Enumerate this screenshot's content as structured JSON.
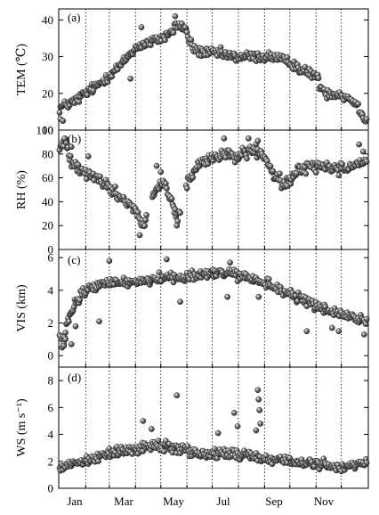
{
  "figure": {
    "x_ticks": [
      "Jan",
      "Mar",
      "May",
      "Jul",
      "Sep",
      "Nov"
    ],
    "month_day_starts": [
      1,
      32,
      60,
      91,
      121,
      152,
      182,
      213,
      244,
      274,
      305,
      335,
      366
    ]
  },
  "colors": {
    "marker_fill": "#3a3a3a",
    "marker_highlight": "#f2f2f2",
    "axis": "#000000"
  },
  "chart_data": [
    {
      "type": "scatter",
      "panel_label": "(a)",
      "ylabel": "TEM (℃)",
      "ylim": [
        10,
        43
      ],
      "yticks": [
        10,
        20,
        30,
        40
      ],
      "xlim": [
        0,
        367
      ],
      "vgrid": "dotted at month boundaries",
      "x_unit": "day of year",
      "anchors": [
        [
          1,
          16
        ],
        [
          10,
          17
        ],
        [
          20,
          18
        ],
        [
          31,
          20
        ],
        [
          45,
          22
        ],
        [
          60,
          25
        ],
        [
          75,
          28
        ],
        [
          85,
          31
        ],
        [
          95,
          33
        ],
        [
          110,
          34
        ],
        [
          122,
          35
        ],
        [
          135,
          37
        ],
        [
          140,
          39
        ],
        [
          150,
          37
        ],
        [
          160,
          32
        ],
        [
          175,
          31
        ],
        [
          190,
          31
        ],
        [
          205,
          30
        ],
        [
          220,
          30
        ],
        [
          235,
          30
        ],
        [
          245,
          30
        ],
        [
          255,
          30
        ],
        [
          265,
          29
        ],
        [
          278,
          28
        ],
        [
          290,
          26
        ],
        [
          305,
          25
        ],
        [
          310,
          22
        ],
        [
          318,
          20
        ],
        [
          330,
          20
        ],
        [
          340,
          19
        ],
        [
          350,
          18
        ],
        [
          358,
          15
        ],
        [
          364,
          13
        ]
      ],
      "noise": 2.0,
      "spikes": [
        [
          2,
          13
        ],
        [
          5,
          12.5
        ],
        [
          85,
          24
        ],
        [
          98,
          38
        ],
        [
          138,
          41
        ],
        [
          146,
          39
        ],
        [
          150,
          38
        ]
      ],
      "skip_ranges": []
    },
    {
      "type": "scatter",
      "panel_label": "(b)",
      "ylabel": "RH (%)",
      "ylim": [
        0,
        100
      ],
      "yticks": [
        0,
        20,
        40,
        60,
        80,
        100
      ],
      "xlim": [
        0,
        367
      ],
      "vgrid": "dotted at month boundaries",
      "x_unit": "day of year",
      "anchors": [
        [
          1,
          85
        ],
        [
          8,
          90
        ],
        [
          15,
          75
        ],
        [
          25,
          68
        ],
        [
          40,
          62
        ],
        [
          55,
          55
        ],
        [
          65,
          48
        ],
        [
          75,
          43
        ],
        [
          85,
          38
        ],
        [
          92,
          32
        ],
        [
          98,
          20
        ],
        [
          102,
          22
        ],
        [
          106,
          38
        ],
        [
          115,
          50
        ],
        [
          125,
          55
        ],
        [
          130,
          45
        ],
        [
          136,
          35
        ],
        [
          141,
          25
        ],
        [
          150,
          52
        ],
        [
          160,
          65
        ],
        [
          168,
          72
        ],
        [
          180,
          75
        ],
        [
          195,
          80
        ],
        [
          210,
          78
        ],
        [
          225,
          82
        ],
        [
          235,
          82
        ],
        [
          243,
          78
        ],
        [
          255,
          62
        ],
        [
          265,
          55
        ],
        [
          275,
          58
        ],
        [
          285,
          67
        ],
        [
          295,
          70
        ],
        [
          310,
          70
        ],
        [
          325,
          68
        ],
        [
          340,
          68
        ],
        [
          355,
          72
        ],
        [
          364,
          75
        ]
      ],
      "noise": 7.0,
      "spikes": [
        [
          7,
          93
        ],
        [
          15,
          86
        ],
        [
          35,
          78
        ],
        [
          42,
          58
        ],
        [
          96,
          12
        ],
        [
          116,
          70
        ],
        [
          121,
          65
        ],
        [
          140,
          20
        ],
        [
          196,
          93
        ],
        [
          225,
          93
        ],
        [
          236,
          91
        ],
        [
          356,
          88
        ],
        [
          361,
          82
        ]
      ],
      "skip_ranges": [
        [
          105,
          110
        ],
        [
          145,
          150
        ]
      ]
    },
    {
      "type": "scatter",
      "panel_label": "(c)",
      "ylabel": "VIS (km)",
      "ylim": [
        -0.7,
        6.5
      ],
      "yticks": [
        0,
        2,
        4,
        6
      ],
      "xlim": [
        0,
        367
      ],
      "vgrid": "dotted at month boundaries",
      "x_unit": "day of year",
      "anchors": [
        [
          1,
          1.2
        ],
        [
          6,
          0.8
        ],
        [
          10,
          2.0
        ],
        [
          18,
          3.0
        ],
        [
          28,
          3.8
        ],
        [
          40,
          4.2
        ],
        [
          55,
          4.4
        ],
        [
          70,
          4.5
        ],
        [
          85,
          4.5
        ],
        [
          100,
          4.6
        ],
        [
          115,
          4.7
        ],
        [
          130,
          4.8
        ],
        [
          145,
          4.8
        ],
        [
          160,
          4.9
        ],
        [
          175,
          5.0
        ],
        [
          190,
          5.1
        ],
        [
          205,
          5.0
        ],
        [
          220,
          4.8
        ],
        [
          235,
          4.6
        ],
        [
          250,
          4.3
        ],
        [
          265,
          4.0
        ],
        [
          278,
          3.7
        ],
        [
          290,
          3.4
        ],
        [
          305,
          3.0
        ],
        [
          318,
          2.8
        ],
        [
          330,
          2.6
        ],
        [
          345,
          2.4
        ],
        [
          358,
          2.3
        ],
        [
          364,
          2.0
        ]
      ],
      "noise": 0.45,
      "spikes": [
        [
          4,
          0.5
        ],
        [
          6,
          0.6
        ],
        [
          8,
          1.0
        ],
        [
          15,
          0.7
        ],
        [
          20,
          1.8
        ],
        [
          48,
          2.1
        ],
        [
          60,
          5.8
        ],
        [
          128,
          5.9
        ],
        [
          144,
          3.3
        ],
        [
          200,
          3.6
        ],
        [
          203,
          5.7
        ],
        [
          237,
          3.6
        ],
        [
          294,
          1.5
        ],
        [
          316,
          3.0
        ],
        [
          324,
          1.7
        ],
        [
          332,
          1.5
        ],
        [
          362,
          1.3
        ]
      ],
      "skip_ranges": []
    },
    {
      "type": "scatter",
      "panel_label": "(d)",
      "ylabel": "WS (m s⁻¹)",
      "ylim": [
        0,
        9
      ],
      "yticks": [
        0,
        2,
        4,
        6,
        8
      ],
      "xlim": [
        0,
        367
      ],
      "vgrid": "dotted at month boundaries",
      "x_unit": "day of year",
      "anchors": [
        [
          1,
          1.6
        ],
        [
          20,
          1.9
        ],
        [
          40,
          2.2
        ],
        [
          60,
          2.6
        ],
        [
          80,
          2.8
        ],
        [
          95,
          3.0
        ],
        [
          110,
          3.2
        ],
        [
          125,
          3.2
        ],
        [
          140,
          3.0
        ],
        [
          155,
          2.8
        ],
        [
          170,
          2.6
        ],
        [
          185,
          2.5
        ],
        [
          200,
          2.6
        ],
        [
          215,
          2.5
        ],
        [
          230,
          2.4
        ],
        [
          245,
          2.2
        ],
        [
          260,
          2.1
        ],
        [
          275,
          2.0
        ],
        [
          290,
          1.9
        ],
        [
          305,
          1.8
        ],
        [
          320,
          1.7
        ],
        [
          340,
          1.6
        ],
        [
          355,
          1.8
        ],
        [
          364,
          2.0
        ]
      ],
      "noise": 0.55,
      "spikes": [
        [
          140,
          6.9
        ],
        [
          208,
          5.6
        ],
        [
          212,
          4.6
        ],
        [
          236,
          7.3
        ],
        [
          237,
          6.6
        ],
        [
          238,
          5.8
        ],
        [
          239,
          4.8
        ],
        [
          234,
          4.3
        ],
        [
          100,
          5.0
        ],
        [
          110,
          4.4
        ],
        [
          189,
          4.1
        ]
      ],
      "skip_ranges": []
    }
  ]
}
